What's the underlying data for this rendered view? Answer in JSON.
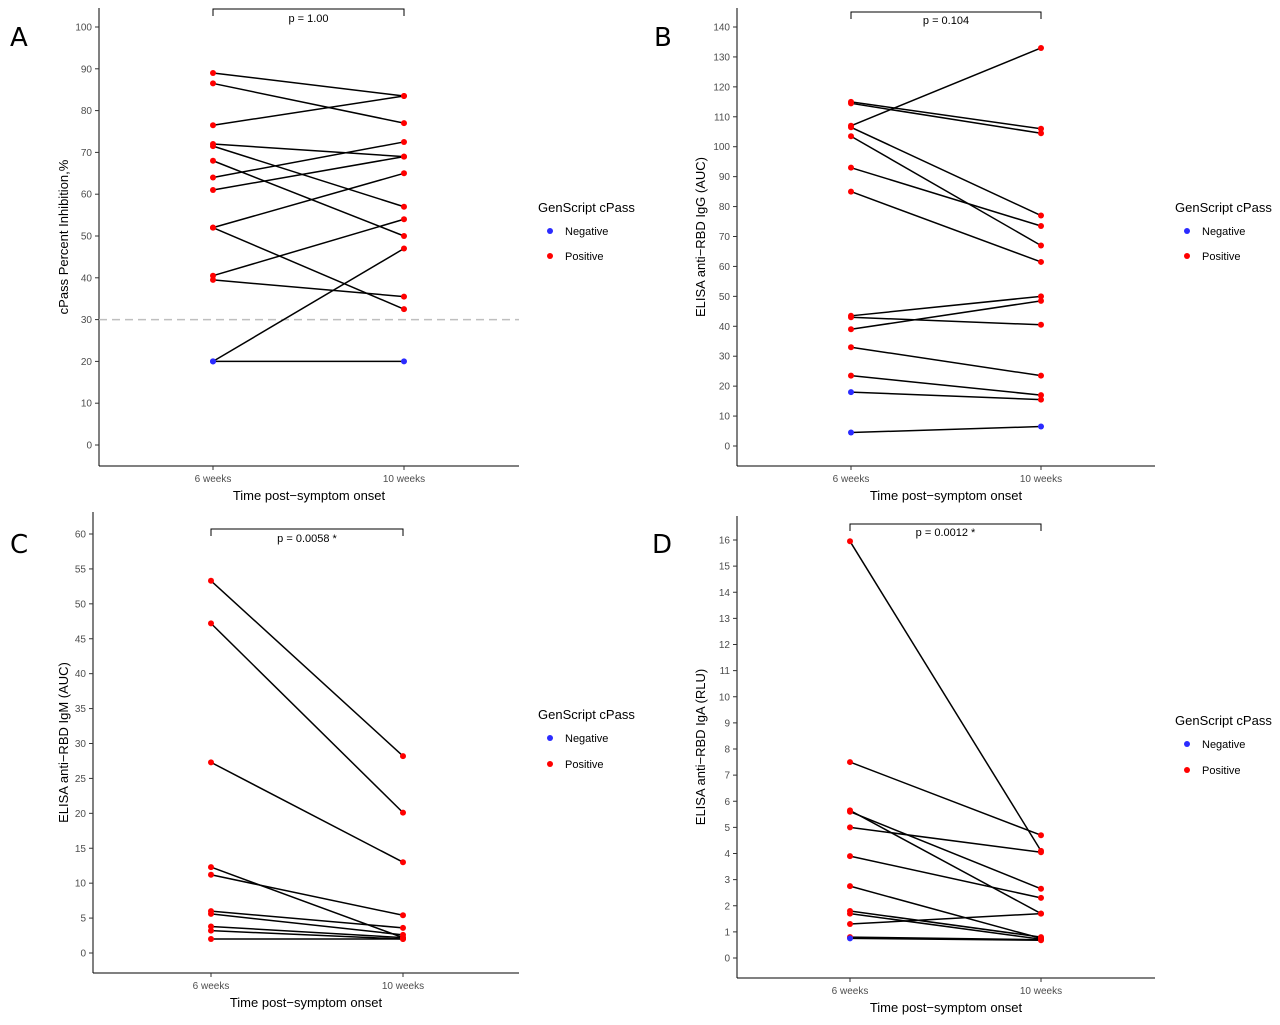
{
  "colors": {
    "positive": "#ff0000",
    "negative": "#2b2bff",
    "line": "#000000",
    "threshold": "#bfbfbf"
  },
  "chart_data": [
    {
      "panel": "A",
      "type": "line",
      "categories": [
        "6 weeks",
        "10 weeks"
      ],
      "xlabel": "Time post−symptom onset",
      "ylabel": "cPass Percent Inhibition,%",
      "ylim": [
        0,
        100
      ],
      "yticks": [
        0,
        10,
        20,
        30,
        40,
        50,
        60,
        70,
        80,
        90,
        100
      ],
      "pvalue": "p = 1.00",
      "threshold": 30,
      "legend": {
        "title": "GenScript cPass",
        "entries": [
          "Negative",
          "Positive"
        ],
        "placement": "right"
      },
      "pairs": [
        {
          "y": [
            89,
            83.5
          ],
          "s": [
            "Positive",
            "Positive"
          ]
        },
        {
          "y": [
            86.5,
            77
          ],
          "s": [
            "Positive",
            "Positive"
          ]
        },
        {
          "y": [
            76.5,
            83.5
          ],
          "s": [
            "Positive",
            "Positive"
          ]
        },
        {
          "y": [
            72,
            69
          ],
          "s": [
            "Positive",
            "Positive"
          ]
        },
        {
          "y": [
            71.5,
            57
          ],
          "s": [
            "Positive",
            "Positive"
          ]
        },
        {
          "y": [
            68,
            50
          ],
          "s": [
            "Positive",
            "Positive"
          ]
        },
        {
          "y": [
            64,
            72.5
          ],
          "s": [
            "Positive",
            "Positive"
          ]
        },
        {
          "y": [
            61,
            69
          ],
          "s": [
            "Positive",
            "Positive"
          ]
        },
        {
          "y": [
            52,
            65
          ],
          "s": [
            "Positive",
            "Positive"
          ]
        },
        {
          "y": [
            52,
            32.5
          ],
          "s": [
            "Positive",
            "Positive"
          ]
        },
        {
          "y": [
            40.5,
            54
          ],
          "s": [
            "Positive",
            "Positive"
          ]
        },
        {
          "y": [
            39.5,
            35.5
          ],
          "s": [
            "Positive",
            "Positive"
          ]
        },
        {
          "y": [
            20,
            47
          ],
          "s": [
            "Negative",
            "Positive"
          ]
        },
        {
          "y": [
            20,
            20
          ],
          "s": [
            "Negative",
            "Negative"
          ]
        }
      ]
    },
    {
      "panel": "B",
      "type": "line",
      "categories": [
        "6 weeks",
        "10 weeks"
      ],
      "xlabel": "Time post−symptom onset",
      "ylabel": "ELISA anti−RBD IgG (AUC)",
      "ylim": [
        0,
        140
      ],
      "yticks": [
        0,
        10,
        20,
        30,
        40,
        50,
        60,
        70,
        80,
        90,
        100,
        110,
        120,
        130,
        140
      ],
      "pvalue": "p = 0.104",
      "legend": {
        "title": "GenScript cPass",
        "entries": [
          "Negative",
          "Positive"
        ],
        "placement": "right"
      },
      "pairs": [
        {
          "y": [
            115,
            106
          ],
          "s": [
            "Positive",
            "Positive"
          ]
        },
        {
          "y": [
            114.5,
            104.5
          ],
          "s": [
            "Positive",
            "Positive"
          ]
        },
        {
          "y": [
            107,
            133
          ],
          "s": [
            "Positive",
            "Positive"
          ]
        },
        {
          "y": [
            106.5,
            77
          ],
          "s": [
            "Positive",
            "Positive"
          ]
        },
        {
          "y": [
            103.5,
            67
          ],
          "s": [
            "Positive",
            "Positive"
          ]
        },
        {
          "y": [
            93,
            73.5
          ],
          "s": [
            "Positive",
            "Positive"
          ]
        },
        {
          "y": [
            85,
            61.5
          ],
          "s": [
            "Positive",
            "Positive"
          ]
        },
        {
          "y": [
            43.5,
            50
          ],
          "s": [
            "Positive",
            "Positive"
          ]
        },
        {
          "y": [
            43,
            40.5
          ],
          "s": [
            "Positive",
            "Positive"
          ]
        },
        {
          "y": [
            39,
            48.5
          ],
          "s": [
            "Positive",
            "Positive"
          ]
        },
        {
          "y": [
            33,
            23.5
          ],
          "s": [
            "Positive",
            "Positive"
          ]
        },
        {
          "y": [
            23.5,
            17
          ],
          "s": [
            "Positive",
            "Positive"
          ]
        },
        {
          "y": [
            18,
            15.5
          ],
          "s": [
            "Negative",
            "Positive"
          ]
        },
        {
          "y": [
            4.5,
            6.5
          ],
          "s": [
            "Negative",
            "Negative"
          ]
        }
      ]
    },
    {
      "panel": "C",
      "type": "line",
      "categories": [
        "6 weeks",
        "10 weeks"
      ],
      "xlabel": "Time post−symptom onset",
      "ylabel": "ELISA anti−RBD IgM (AUC)",
      "ylim": [
        0,
        60
      ],
      "yticks": [
        0,
        5,
        10,
        15,
        20,
        25,
        30,
        35,
        40,
        45,
        50,
        55,
        60
      ],
      "pvalue": "p = 0.0058 *",
      "legend": {
        "title": "GenScript cPass",
        "entries": [
          "Negative",
          "Positive"
        ],
        "placement": "right"
      },
      "pairs": [
        {
          "y": [
            53.3,
            28.2
          ],
          "s": [
            "Positive",
            "Positive"
          ]
        },
        {
          "y": [
            47.2,
            20.1
          ],
          "s": [
            "Positive",
            "Positive"
          ]
        },
        {
          "y": [
            27.3,
            13.0
          ],
          "s": [
            "Positive",
            "Positive"
          ]
        },
        {
          "y": [
            12.3,
            2.2
          ],
          "s": [
            "Positive",
            "Positive"
          ]
        },
        {
          "y": [
            11.2,
            5.4
          ],
          "s": [
            "Positive",
            "Positive"
          ]
        },
        {
          "y": [
            6.0,
            3.6
          ],
          "s": [
            "Positive",
            "Positive"
          ]
        },
        {
          "y": [
            5.6,
            2.6
          ],
          "s": [
            "Positive",
            "Positive"
          ]
        },
        {
          "y": [
            3.8,
            2.2
          ],
          "s": [
            "Positive",
            "Positive"
          ]
        },
        {
          "y": [
            3.2,
            2.0
          ],
          "s": [
            "Positive",
            "Positive"
          ]
        },
        {
          "y": [
            2.0,
            2.0
          ],
          "s": [
            "Positive",
            "Positive"
          ]
        }
      ]
    },
    {
      "panel": "D",
      "type": "line",
      "categories": [
        "6 weeks",
        "10 weeks"
      ],
      "xlabel": "Time post−symptom onset",
      "ylabel": "ELISA anti−RBD IgA (RLU)",
      "ylim": [
        0,
        16
      ],
      "yticks": [
        0,
        1,
        2,
        3,
        4,
        5,
        6,
        7,
        8,
        9,
        10,
        11,
        12,
        13,
        14,
        15,
        16
      ],
      "pvalue": "p = 0.0012 *",
      "legend": {
        "title": "GenScript cPass",
        "entries": [
          "Negative",
          "Positive"
        ],
        "placement": "right"
      },
      "pairs": [
        {
          "y": [
            15.95,
            4.1
          ],
          "s": [
            "Positive",
            "Positive"
          ]
        },
        {
          "y": [
            7.5,
            4.7
          ],
          "s": [
            "Positive",
            "Positive"
          ]
        },
        {
          "y": [
            5.65,
            1.7
          ],
          "s": [
            "Positive",
            "Positive"
          ]
        },
        {
          "y": [
            5.6,
            2.65
          ],
          "s": [
            "Positive",
            "Positive"
          ]
        },
        {
          "y": [
            5.0,
            4.05
          ],
          "s": [
            "Positive",
            "Positive"
          ]
        },
        {
          "y": [
            3.9,
            2.3
          ],
          "s": [
            "Positive",
            "Positive"
          ]
        },
        {
          "y": [
            2.75,
            0.75
          ],
          "s": [
            "Positive",
            "Positive"
          ]
        },
        {
          "y": [
            1.8,
            0.8
          ],
          "s": [
            "Positive",
            "Positive"
          ]
        },
        {
          "y": [
            1.7,
            0.72
          ],
          "s": [
            "Positive",
            "Positive"
          ]
        },
        {
          "y": [
            1.3,
            1.7
          ],
          "s": [
            "Positive",
            "Positive"
          ]
        },
        {
          "y": [
            0.8,
            0.7
          ],
          "s": [
            "Positive",
            "Positive"
          ]
        },
        {
          "y": [
            0.75,
            0.68
          ],
          "s": [
            "Negative",
            "Positive"
          ]
        }
      ]
    }
  ]
}
